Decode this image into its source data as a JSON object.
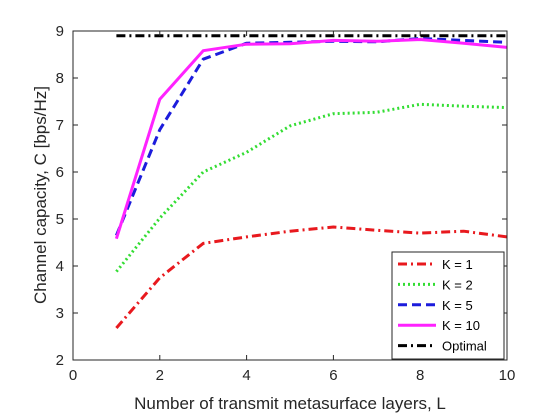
{
  "chart_data": {
    "type": "line",
    "xlabel": "Number of transmit metasurface layers, L",
    "ylabel": "Channel capacity, C [bps/Hz]",
    "xlim": [
      0,
      10
    ],
    "ylim": [
      2,
      9
    ],
    "xticks": [
      "0",
      "2",
      "4",
      "6",
      "8",
      "10"
    ],
    "yticks": [
      "2",
      "3",
      "4",
      "5",
      "6",
      "7",
      "8",
      "9"
    ],
    "grid": false,
    "legend_position": "bottom-right",
    "x": [
      1,
      2,
      3,
      4,
      5,
      6,
      7,
      8,
      9,
      10
    ],
    "series": [
      {
        "name": "K = 1",
        "color": "#e8191e",
        "dash": "dashdot",
        "values": [
          2.68,
          3.75,
          4.48,
          4.62,
          4.74,
          4.83,
          4.76,
          4.7,
          4.74,
          4.62
        ]
      },
      {
        "name": "K = 2",
        "color": "#33dd33",
        "dash": "dotted",
        "values": [
          3.88,
          5.02,
          6.0,
          6.42,
          6.98,
          7.24,
          7.27,
          7.44,
          7.4,
          7.37
        ]
      },
      {
        "name": "K = 5",
        "color": "#1c1cdc",
        "dash": "dashed",
        "values": [
          4.65,
          6.9,
          8.4,
          8.74,
          8.76,
          8.78,
          8.77,
          8.84,
          8.8,
          8.76
        ]
      },
      {
        "name": "K = 10",
        "color": "#ff22ff",
        "dash": "solid",
        "values": [
          4.58,
          7.55,
          8.58,
          8.72,
          8.73,
          8.8,
          8.78,
          8.82,
          8.74,
          8.65
        ]
      },
      {
        "name": "Optimal",
        "color": "#000000",
        "dash": "dashdot",
        "values": [
          8.9,
          8.9,
          8.9,
          8.9,
          8.9,
          8.9,
          8.9,
          8.9,
          8.9,
          8.9
        ]
      }
    ]
  }
}
